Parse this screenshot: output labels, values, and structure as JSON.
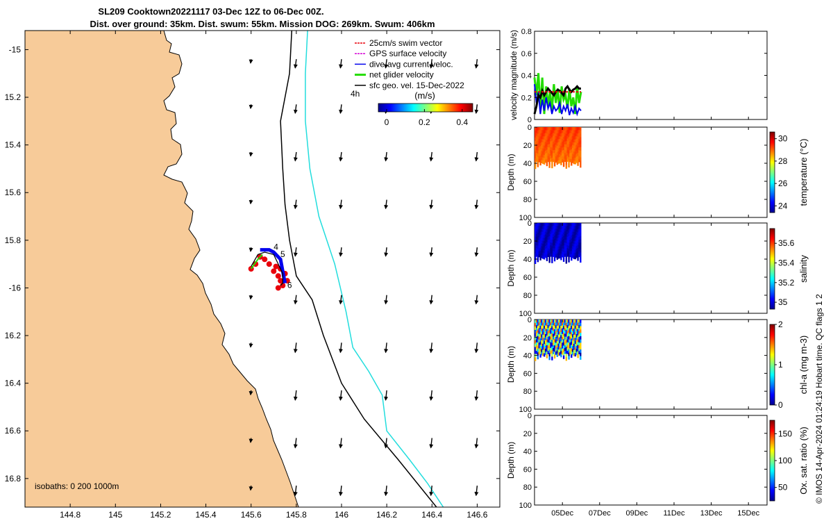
{
  "figure": {
    "title_line1": "SL209 Cooktown20221117 03-Dec 12Z to 06-Dec 00Z.",
    "title_line2": "Dist. over ground: 35km. Dist. swum: 55km. Mission DOG: 269km. Swum: 406km",
    "side_note": "© IMOS 14-Apr-2024 01:24:19 Hobart time. QC flags 1  2"
  },
  "chart_data": [
    {
      "id": "map",
      "type": "scatter",
      "xlim": [
        144.6,
        146.7
      ],
      "ylim": [
        -16.92,
        -14.92
      ],
      "x_ticks": [
        144.8,
        145,
        145.2,
        145.4,
        145.6,
        145.8,
        146,
        146.2,
        146.4,
        146.6
      ],
      "y_ticks": [
        -15,
        -15.2,
        -15.4,
        -15.6,
        -15.8,
        -16,
        -16.2,
        -16.4,
        -16.6,
        -16.8
      ],
      "x_tick_labels": [
        "144.8",
        "145",
        "145.2",
        "145.4",
        "145.6",
        "145.8",
        "146",
        "146.2",
        "146.4",
        "146.6"
      ],
      "y_tick_labels": [
        "-15",
        "15.2",
        "15.4",
        "15.6",
        "15.8",
        "-16",
        "16.2",
        "16.4",
        "16.6",
        "16.8"
      ],
      "legend": [
        {
          "label": "25cm/s swim vector",
          "color": "#e8000b"
        },
        {
          "label": "GPS surface velocity",
          "color": "#d400d4"
        },
        {
          "label": "dive-avg current veloc.",
          "color": "#0000ee"
        },
        {
          "label": "net glider velocity",
          "color": "#22dd00"
        },
        {
          "label": "sfc geo. vel. 15-Dec-2022",
          "color": "#000000"
        }
      ],
      "colorbar_title": "(m/s)",
      "colorbar_ticks": [
        "0",
        "0.2",
        "0.4"
      ],
      "colorbar_range": [
        0,
        0.5
      ],
      "time_step_label": "4h",
      "isobath_label": "isobaths: 0   200  1000m",
      "land_color": "#f7cb99",
      "isobath_200_color": "#000000",
      "isobath_1000_color": "#22dddd",
      "isobath_200": [
        [
          145.78,
          -14.92
        ],
        [
          145.77,
          -15.1
        ],
        [
          145.73,
          -15.3
        ],
        [
          145.74,
          -15.5
        ],
        [
          145.75,
          -15.65
        ],
        [
          145.77,
          -15.8
        ],
        [
          145.8,
          -15.95
        ],
        [
          145.87,
          -16.05
        ],
        [
          145.92,
          -16.2
        ],
        [
          146.0,
          -16.4
        ],
        [
          146.1,
          -16.55
        ],
        [
          146.25,
          -16.72
        ],
        [
          146.42,
          -16.92
        ]
      ],
      "isobath_1000": [
        [
          145.85,
          -14.92
        ],
        [
          145.84,
          -15.1
        ],
        [
          145.84,
          -15.3
        ],
        [
          145.86,
          -15.5
        ],
        [
          145.9,
          -15.7
        ],
        [
          145.97,
          -15.9
        ],
        [
          146.02,
          -16.1
        ],
        [
          146.05,
          -16.25
        ],
        [
          146.12,
          -16.35
        ],
        [
          146.18,
          -16.45
        ],
        [
          146.2,
          -16.6
        ],
        [
          146.3,
          -16.72
        ],
        [
          146.38,
          -16.82
        ],
        [
          146.45,
          -16.92
        ]
      ],
      "track": [
        [
          145.6,
          -15.91
        ],
        [
          145.63,
          -15.86
        ],
        [
          145.66,
          -15.85
        ],
        [
          145.7,
          -15.86
        ],
        [
          145.72,
          -15.9
        ],
        [
          145.74,
          -15.94
        ],
        [
          145.74,
          -15.98
        ],
        [
          145.73,
          -15.99
        ]
      ],
      "track_labels": [
        {
          "text": "4",
          "lon": 145.7,
          "lat": -15.84
        },
        {
          "text": "5",
          "lon": 145.73,
          "lat": -15.87
        },
        {
          "text": "6",
          "lon": 145.76,
          "lat": -16.0
        }
      ],
      "current_arrows": {
        "lons": [
          145.6,
          145.8,
          146.0,
          146.2,
          146.4,
          146.6
        ],
        "lats": [
          -15.04,
          -15.23,
          -15.43,
          -15.63,
          -15.83,
          -16.03,
          -16.23,
          -16.43,
          -16.63,
          -16.83
        ],
        "u": -0.01,
        "v": -0.22
      }
    },
    {
      "id": "velocity",
      "type": "line",
      "ylabel": "velocity magnitude (m/s)",
      "ylim": [
        0,
        0.8
      ],
      "y_ticks": [
        "0",
        "0.2",
        "0.4",
        "0.6",
        "0.8"
      ],
      "x_start": "2022-12-03T12:00",
      "x_range": [
        "2022-12-03T12:00",
        "2022-12-16T00:00"
      ],
      "x_tick_labels": [
        "05Dec",
        "07Dec",
        "09Dec",
        "11Dec",
        "13Dec",
        "15Dec"
      ],
      "series": [
        {
          "color": "#22dd00",
          "style": "thick",
          "values": [
            0.38,
            0.22,
            0.42,
            0.1,
            0.38,
            0.05,
            0.3,
            0.12,
            0.25,
            0.08,
            0.32,
            0.15,
            0.28,
            0.06,
            0.3,
            0.18,
            0.22,
            0.1,
            0.28,
            0.12,
            0.2,
            0.05,
            0.3,
            0.15,
            0.25
          ]
        },
        {
          "color": "#0000ee",
          "style": "normal",
          "values": [
            0.32,
            0.15,
            0.25,
            0.05,
            0.18,
            0.08,
            0.2,
            0.1,
            0.15,
            0.05,
            0.12,
            0.08,
            0.1,
            0.15,
            0.05,
            0.12,
            0.08,
            0.14,
            0.04,
            0.1,
            0.06,
            0.12,
            0.05,
            0.1,
            0.08
          ]
        },
        {
          "color": "#000000",
          "style": "thick",
          "values": [
            0.05,
            0.12,
            0.22,
            0.2,
            0.26,
            0.22,
            0.25,
            0.28,
            0.26,
            0.24,
            0.22,
            0.25,
            0.27,
            0.26,
            0.24,
            0.22,
            0.28,
            0.3,
            0.27,
            0.25,
            0.27,
            0.28,
            0.3,
            0.28,
            0.28
          ]
        },
        {
          "color": "#e8000b",
          "style": "dashed",
          "values": [
            0.25,
            0.25,
            0.25,
            0.25,
            0.25,
            0.25,
            0.25,
            0.25,
            0.25,
            0.25,
            0.25,
            0.25,
            0.25,
            0.25,
            0.25,
            0.25,
            0.25,
            0.25,
            0.25,
            0.25,
            0.25,
            0.25,
            0.25,
            0.25,
            0.25
          ]
        }
      ]
    },
    {
      "id": "temperature",
      "type": "heatmap",
      "ylabel": "Depth (m)",
      "clabel": "temperature (°C)",
      "ylim": [
        100,
        0
      ],
      "y_ticks": [
        "0",
        "20",
        "40",
        "60",
        "80",
        "100"
      ],
      "cticks": [
        "24",
        "26",
        "28",
        "30"
      ],
      "crange": [
        23.4,
        30.6
      ],
      "data_x_range": [
        "2022-12-03T12:00",
        "2022-12-06T00:00"
      ],
      "data_depth": [
        0,
        46
      ],
      "mean_value": 29.3
    },
    {
      "id": "salinity",
      "type": "heatmap",
      "ylabel": "Depth (m)",
      "clabel": "salinity",
      "ylim": [
        100,
        0
      ],
      "y_ticks": [
        "0",
        "20",
        "40",
        "60",
        "80",
        "100"
      ],
      "cticks": [
        "35",
        "35.2",
        "35.4",
        "35.6"
      ],
      "crange": [
        34.93,
        35.75
      ],
      "data_x_range": [
        "2022-12-03T12:00",
        "2022-12-06T00:00"
      ],
      "data_depth": [
        0,
        45
      ],
      "mean_value": 34.98
    },
    {
      "id": "chla",
      "type": "heatmap",
      "ylabel": "Depth (m)",
      "clabel": "chl-a (mg m-3)",
      "ylim": [
        100,
        0
      ],
      "y_ticks": [
        "0",
        "20",
        "40",
        "60",
        "80",
        "100"
      ],
      "cticks": [
        "0",
        "1",
        "2"
      ],
      "crange": [
        0,
        2
      ],
      "data_x_range": [
        "2022-12-03T12:00",
        "2022-12-06T00:00"
      ],
      "data_depth": [
        0,
        46
      ],
      "mean_value": 0.9
    },
    {
      "id": "oxygen",
      "type": "heatmap",
      "ylabel": "Depth (m)",
      "clabel": "Ox. sat. ratio (%)",
      "ylim": [
        100,
        0
      ],
      "y_ticks": [
        "0",
        "20",
        "40",
        "60",
        "80",
        "100"
      ],
      "cticks": [
        "50",
        "100",
        "150"
      ],
      "crange": [
        25,
        175
      ],
      "x_tick_labels": [
        "05Dec",
        "07Dec",
        "09Dec",
        "11Dec",
        "13Dec",
        "15Dec"
      ]
    }
  ]
}
